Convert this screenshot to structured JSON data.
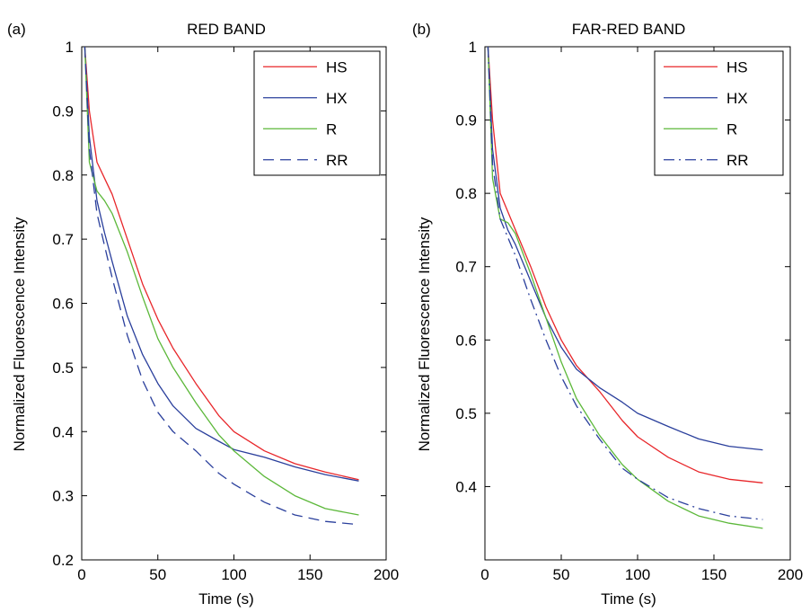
{
  "chart_data": [
    {
      "type": "line",
      "panel_label": "(a)",
      "title": "RED BAND",
      "xlabel": "Time (s)",
      "ylabel": "Normalized Fluorescence Intensity",
      "xlim": [
        0,
        200
      ],
      "ylim": [
        0.2,
        1.0
      ],
      "xticks": [
        "0",
        "50",
        "100",
        "150",
        "200"
      ],
      "yticks": [
        "0.2",
        "0.3",
        "0.4",
        "0.5",
        "0.6",
        "0.7",
        "0.8",
        "0.9",
        "1"
      ],
      "grid": false,
      "legend": "top-right",
      "x": [
        2,
        5,
        10,
        15,
        20,
        30,
        40,
        50,
        60,
        75,
        90,
        100,
        120,
        140,
        160,
        182
      ],
      "series": [
        {
          "name": "HS",
          "color": "#e8262a",
          "dash": "solid",
          "values": [
            1.0,
            0.9,
            0.82,
            0.795,
            0.77,
            0.7,
            0.63,
            0.575,
            0.53,
            0.475,
            0.425,
            0.4,
            0.37,
            0.35,
            0.337,
            0.325
          ]
        },
        {
          "name": "HX",
          "color": "#2a3f9c",
          "dash": "solid",
          "values": [
            1.0,
            0.86,
            0.76,
            0.71,
            0.665,
            0.58,
            0.52,
            0.475,
            0.44,
            0.405,
            0.385,
            0.372,
            0.36,
            0.345,
            0.333,
            0.323
          ]
        },
        {
          "name": "R",
          "color": "#5cb83a",
          "dash": "solid",
          "values": [
            1.0,
            0.82,
            0.775,
            0.76,
            0.74,
            0.68,
            0.61,
            0.545,
            0.5,
            0.445,
            0.395,
            0.37,
            0.33,
            0.3,
            0.28,
            0.27
          ]
        },
        {
          "name": "RR",
          "color": "#2a3f9c",
          "dash": "dashed",
          "values": [
            1.0,
            0.84,
            0.74,
            0.69,
            0.64,
            0.55,
            0.48,
            0.43,
            0.4,
            0.37,
            0.335,
            0.318,
            0.29,
            0.27,
            0.26,
            0.255
          ]
        }
      ]
    },
    {
      "type": "line",
      "panel_label": "(b)",
      "title": "FAR-RED BAND",
      "xlabel": "Time (s)",
      "ylabel": "Normalized Fluorescence Intensity",
      "xlim": [
        0,
        200
      ],
      "ylim": [
        0.3,
        1.0
      ],
      "xticks": [
        "0",
        "50",
        "100",
        "150",
        "200"
      ],
      "yticks": [
        "0.4",
        "0.5",
        "0.6",
        "0.7",
        "0.8",
        "0.9",
        "1"
      ],
      "grid": false,
      "legend": "top-right",
      "x": [
        2,
        5,
        10,
        15,
        20,
        30,
        40,
        50,
        60,
        75,
        90,
        100,
        120,
        140,
        160,
        182
      ],
      "series": [
        {
          "name": "HS",
          "color": "#e8262a",
          "dash": "solid",
          "values": [
            1.0,
            0.9,
            0.8,
            0.775,
            0.75,
            0.7,
            0.645,
            0.6,
            0.565,
            0.53,
            0.49,
            0.468,
            0.44,
            0.42,
            0.41,
            0.405
          ]
        },
        {
          "name": "HX",
          "color": "#2a3f9c",
          "dash": "solid",
          "values": [
            1.0,
            0.86,
            0.78,
            0.75,
            0.73,
            0.68,
            0.63,
            0.59,
            0.56,
            0.535,
            0.515,
            0.5,
            0.482,
            0.465,
            0.455,
            0.45
          ]
        },
        {
          "name": "R",
          "color": "#5cb83a",
          "dash": "solid",
          "values": [
            1.0,
            0.82,
            0.765,
            0.76,
            0.745,
            0.69,
            0.63,
            0.57,
            0.52,
            0.47,
            0.43,
            0.41,
            0.38,
            0.36,
            0.35,
            0.343
          ]
        },
        {
          "name": "RR",
          "color": "#2a3f9c",
          "dash": "dashdot",
          "values": [
            1.0,
            0.84,
            0.765,
            0.74,
            0.715,
            0.655,
            0.6,
            0.55,
            0.51,
            0.465,
            0.425,
            0.41,
            0.385,
            0.37,
            0.36,
            0.355
          ]
        }
      ]
    }
  ]
}
